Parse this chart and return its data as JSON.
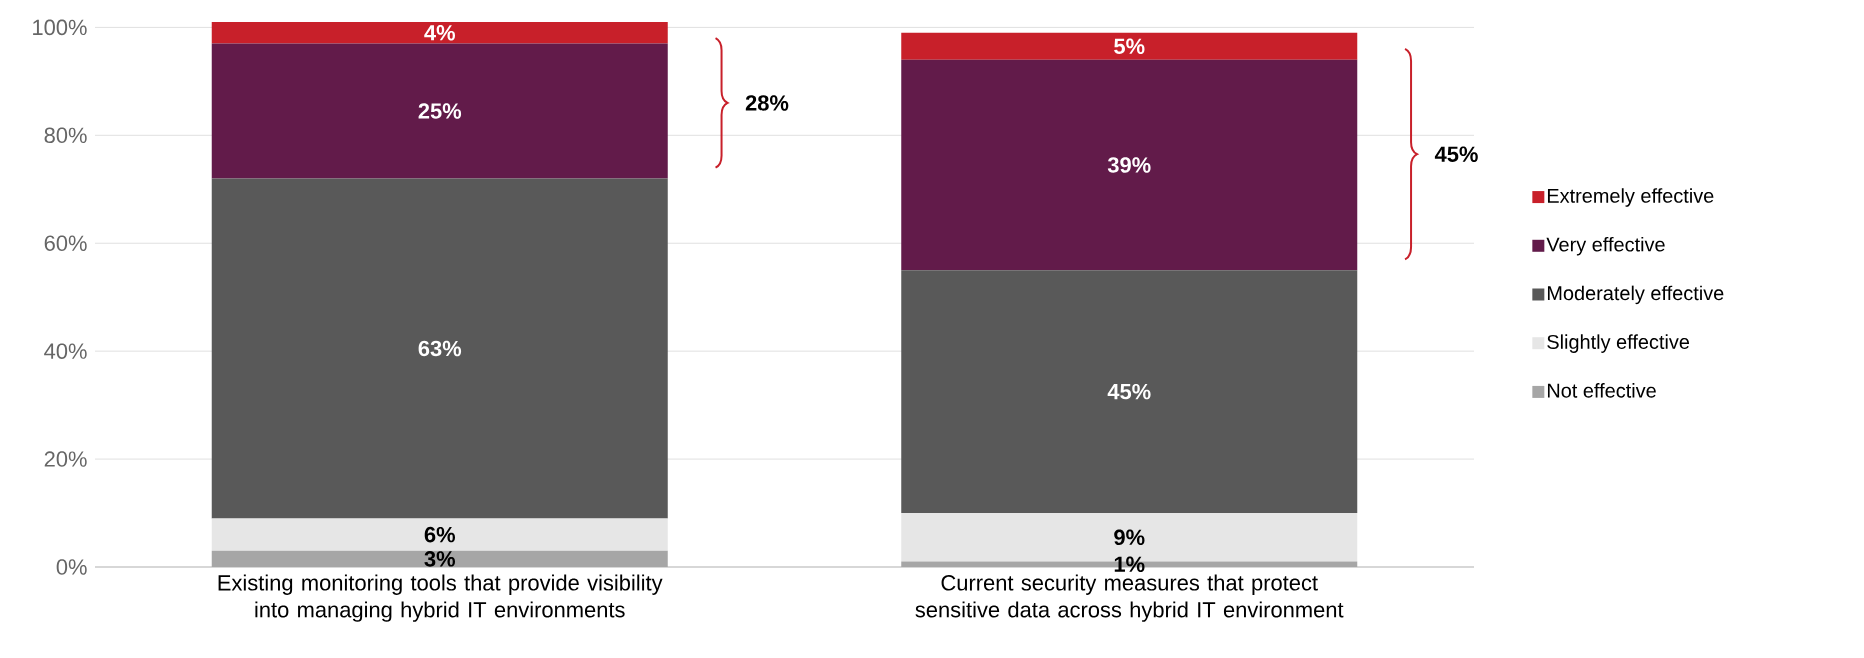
{
  "chart_data": {
    "type": "bar",
    "stacked": true,
    "categories": [
      "Existing monitoring tools that provide visibility into managing hybrid IT environments",
      "Current security measures that protect sensitive data across hybrid IT environment"
    ],
    "series": [
      {
        "name": "Not effective",
        "color": "#a6a6a6",
        "values": [
          3,
          1
        ],
        "value_labels": [
          "3%",
          "1%"
        ]
      },
      {
        "name": "Slightly effective",
        "color": "#e6e6e6",
        "values": [
          6,
          9
        ],
        "value_labels": [
          "6%",
          "9%"
        ]
      },
      {
        "name": "Moderately effective",
        "color": "#595959",
        "values": [
          63,
          45
        ],
        "value_labels": [
          "63%",
          "45%"
        ]
      },
      {
        "name": "Very effective",
        "color": "#621b4a",
        "values": [
          25,
          39
        ],
        "value_labels": [
          "25%",
          "39%"
        ]
      },
      {
        "name": "Extremely effective",
        "color": "#c8202a",
        "values": [
          4,
          5
        ],
        "value_labels": [
          "4%",
          "5%"
        ]
      }
    ],
    "ylim": [
      0,
      101
    ],
    "yticks": [
      {
        "value": 0,
        "label": "0%"
      },
      {
        "value": 20,
        "label": "20%"
      },
      {
        "value": 40,
        "label": "40%"
      },
      {
        "value": 60,
        "label": "60%"
      },
      {
        "value": 80,
        "label": "80%"
      },
      {
        "value": 100,
        "label": "100%"
      }
    ],
    "grid": "y",
    "legend": "right",
    "annotations": [
      "28%",
      "45%"
    ]
  }
}
